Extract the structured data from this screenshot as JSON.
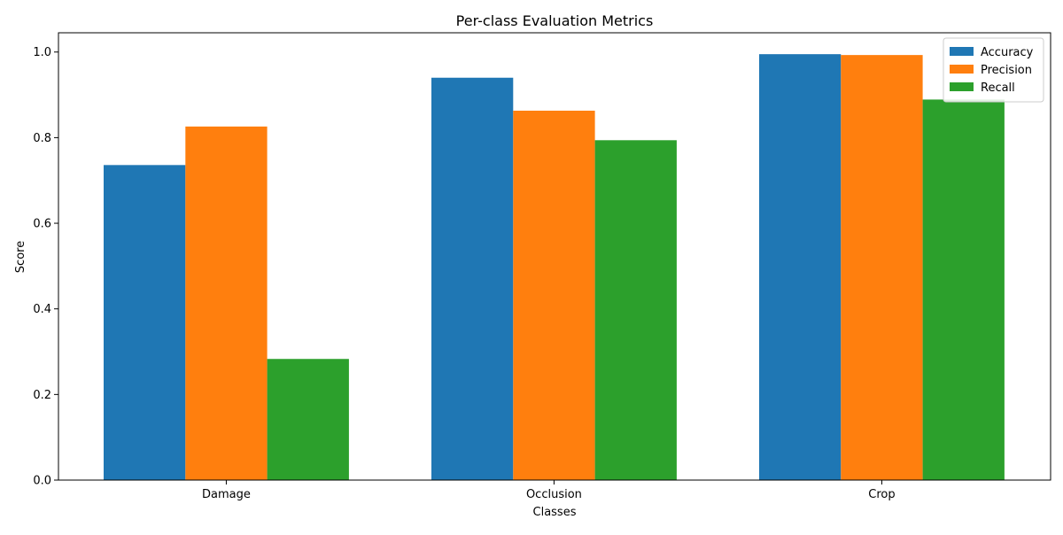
{
  "chart_data": {
    "type": "bar",
    "title": "Per-class Evaluation Metrics",
    "xlabel": "Classes",
    "ylabel": "Score",
    "categories": [
      "Damage",
      "Occlusion",
      "Crop"
    ],
    "series": [
      {
        "name": "Accuracy",
        "values": [
          0.736,
          0.94,
          0.995
        ],
        "color": "#1f77b4"
      },
      {
        "name": "Precision",
        "values": [
          0.826,
          0.863,
          0.993
        ],
        "color": "#ff7f0e"
      },
      {
        "name": "Recall",
        "values": [
          0.283,
          0.794,
          0.889
        ],
        "color": "#2ca02c"
      }
    ],
    "ylim": [
      0,
      1.045
    ],
    "yticks": [
      "0.0",
      "0.2",
      "0.4",
      "0.6",
      "0.8",
      "1.0"
    ],
    "grid": false,
    "legend_position": "top-right"
  }
}
